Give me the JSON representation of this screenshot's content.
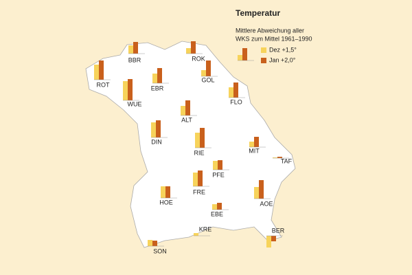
{
  "title": "Temperatur",
  "subtitle": [
    "Mittlere Abweichung aller",
    "WKS zum Mittel 1961–1990"
  ],
  "legend": [
    {
      "label": "Dez +1,5°",
      "color": "#f7d35b"
    },
    {
      "label": "Jan +2,0°",
      "color": "#c9601c"
    }
  ],
  "stations": [
    {
      "name": "BBR",
      "values": [
        1.2,
        1.7
      ]
    },
    {
      "name": "ROK",
      "values": [
        0.8,
        1.8
      ]
    },
    {
      "name": "ROT",
      "values": [
        2.2,
        2.8
      ]
    },
    {
      "name": "EBR",
      "values": [
        1.4,
        2.2
      ]
    },
    {
      "name": "GOL",
      "values": [
        0.9,
        2.3
      ]
    },
    {
      "name": "WUE",
      "values": [
        2.8,
        3.1
      ]
    },
    {
      "name": "FLO",
      "values": [
        1.5,
        2.2
      ]
    },
    {
      "name": "ALT",
      "values": [
        1.4,
        2.2
      ]
    },
    {
      "name": "DIN",
      "values": [
        2.2,
        2.5
      ]
    },
    {
      "name": "RIE",
      "values": [
        2.2,
        2.9
      ]
    },
    {
      "name": "MIT",
      "values": [
        0.8,
        1.5
      ]
    },
    {
      "name": "TAF",
      "values": [
        0.1,
        0.2
      ]
    },
    {
      "name": "PFE",
      "values": [
        1.3,
        1.4
      ]
    },
    {
      "name": "HOE",
      "values": [
        1.7,
        1.7
      ]
    },
    {
      "name": "FRE",
      "values": [
        2.0,
        2.3
      ]
    },
    {
      "name": "AOE",
      "values": [
        1.7,
        2.7
      ]
    },
    {
      "name": "EBE",
      "values": [
        0.8,
        1.0
      ]
    },
    {
      "name": "KRE",
      "values": [
        0.4,
        0.0
      ]
    },
    {
      "name": "SON",
      "values": [
        0.9,
        0.8
      ]
    },
    {
      "name": "BER",
      "values": [
        -1.7,
        -0.8
      ]
    }
  ]
}
